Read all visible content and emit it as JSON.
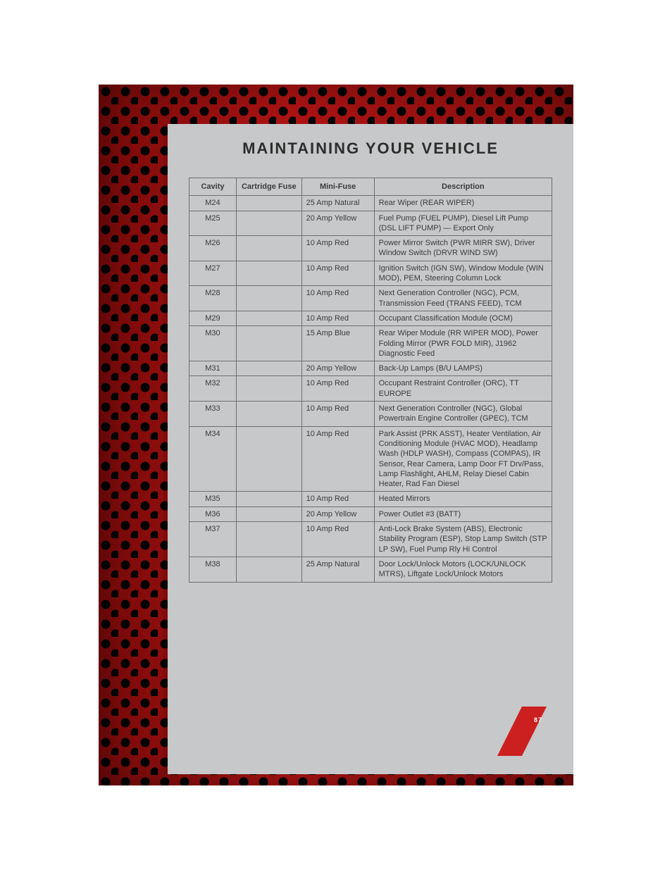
{
  "page": {
    "title": "MAINTAINING YOUR VEHICLE",
    "number": "87",
    "background_color": "#c7c8c9",
    "title_color": "#2d2d2d",
    "title_fontsize": 22,
    "accent_color": "#cc1f1f",
    "border_color": "#6f6f6f",
    "grille_colors": [
      "#7a0a0a",
      "#b01414",
      "#8a0f0f"
    ],
    "hole_color": "#000000"
  },
  "table": {
    "headers": {
      "cavity": "Cavity",
      "cartridge": "Cartridge Fuse",
      "mini": "Mini-Fuse",
      "desc": "Description"
    },
    "column_widths_pct": [
      13,
      18,
      20,
      49
    ],
    "text_color": "#3b3b3b",
    "fontsize": 11,
    "rows": [
      {
        "cavity": "M24",
        "cartridge": "",
        "mini": "25 Amp Natural",
        "desc": "Rear Wiper (REAR WIPER)"
      },
      {
        "cavity": "M25",
        "cartridge": "",
        "mini": "20 Amp Yellow",
        "desc": "Fuel Pump (FUEL PUMP), Diesel Lift Pump (DSL LIFT PUMP) — Export Only"
      },
      {
        "cavity": "M26",
        "cartridge": "",
        "mini": "10 Amp Red",
        "desc": "Power Mirror Switch (PWR MIRR SW), Driver Window Switch (DRVR WIND SW)"
      },
      {
        "cavity": "M27",
        "cartridge": "",
        "mini": "10 Amp Red",
        "desc": "Ignition Switch (IGN SW), Window Module (WIN MOD), PEM, Steering Column Lock"
      },
      {
        "cavity": "M28",
        "cartridge": "",
        "mini": "10 Amp Red",
        "desc": "Next Generation Controller (NGC), PCM, Transmission Feed (TRANS FEED), TCM"
      },
      {
        "cavity": "M29",
        "cartridge": "",
        "mini": "10 Amp Red",
        "desc": "Occupant Classification Module (OCM)"
      },
      {
        "cavity": "M30",
        "cartridge": "",
        "mini": "15 Amp Blue",
        "desc": "Rear Wiper Module (RR WIPER MOD), Power Folding Mirror (PWR FOLD MIR), J1962 Diagnostic Feed"
      },
      {
        "cavity": "M31",
        "cartridge": "",
        "mini": "20 Amp Yellow",
        "desc": "Back-Up Lamps (B/U LAMPS)"
      },
      {
        "cavity": "M32",
        "cartridge": "",
        "mini": "10 Amp Red",
        "desc": "Occupant Restraint Controller (ORC), TT EUROPE"
      },
      {
        "cavity": "M33",
        "cartridge": "",
        "mini": "10 Amp Red",
        "desc": "Next Generation Controller (NGC), Global Powertrain Engine Controller (GPEC), TCM"
      },
      {
        "cavity": "M34",
        "cartridge": "",
        "mini": "10 Amp Red",
        "desc": "Park Assist (PRK ASST), Heater Ventilation, Air Conditioning Module (HVAC MOD), Headlamp Wash (HDLP WASH), Compass (COMPAS), IR Sensor, Rear Camera, Lamp Door FT Drv/Pass, Lamp Flashlight, AHLM, Relay Diesel Cabin Heater, Rad Fan Diesel"
      },
      {
        "cavity": "M35",
        "cartridge": "",
        "mini": "10 Amp Red",
        "desc": "Heated Mirrors"
      },
      {
        "cavity": "M36",
        "cartridge": "",
        "mini": "20 Amp Yellow",
        "desc": "Power Outlet #3 (BATT)"
      },
      {
        "cavity": "M37",
        "cartridge": "",
        "mini": "10 Amp Red",
        "desc": "Anti-Lock Brake System (ABS), Electronic Stability Program (ESP), Stop Lamp Switch (STP LP SW), Fuel Pump Rly Hi Control"
      },
      {
        "cavity": "M38",
        "cartridge": "",
        "mini": "25 Amp Natural",
        "desc": "Door Lock/Unlock Motors (LOCK/UNLOCK MTRS), Liftgate Lock/Unlock Motors"
      }
    ]
  }
}
